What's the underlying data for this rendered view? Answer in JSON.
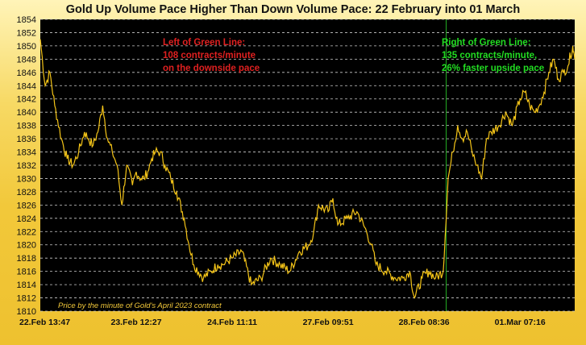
{
  "chart_data": {
    "type": "line",
    "title": "Gold Up Volume Pace Higher Than Down Volume Pace:  22 February into 01 March",
    "ylim": [
      1810,
      1854
    ],
    "y_ticks": [
      1810,
      1812,
      1814,
      1816,
      1818,
      1820,
      1822,
      1824,
      1826,
      1828,
      1830,
      1832,
      1834,
      1836,
      1838,
      1840,
      1842,
      1844,
      1846,
      1848,
      1850,
      1852,
      1854
    ],
    "x_tick_labels": [
      "22.Feb 13:47",
      "23.Feb 12:27",
      "24.Feb 11:11",
      "27.Feb 09:51",
      "28.Feb 08:36",
      "01.Mar 07:16"
    ],
    "x_tick_index": [
      0,
      1,
      2,
      3,
      4,
      5
    ],
    "x_index_range": [
      0,
      5.57
    ],
    "grid": true,
    "green_line_index": 4.23,
    "series": [
      {
        "color": "#f5c518",
        "x": [
          0.0,
          0.05,
          0.1,
          0.15,
          0.22,
          0.28,
          0.34,
          0.4,
          0.46,
          0.5,
          0.55,
          0.6,
          0.65,
          0.7,
          0.75,
          0.8,
          0.85,
          0.9,
          0.96,
          1.0,
          1.05,
          1.08,
          1.12,
          1.16,
          1.2,
          1.25,
          1.3,
          1.36,
          1.42,
          1.5,
          1.55,
          1.6,
          1.7,
          1.78,
          1.85,
          1.9,
          2.0,
          2.1,
          2.2,
          2.3,
          2.4,
          2.5,
          2.6,
          2.7,
          2.8,
          2.85,
          2.9,
          3.0,
          3.05,
          3.1,
          3.2,
          3.3,
          3.4,
          3.45,
          3.5,
          3.6,
          3.7,
          3.78,
          3.85,
          3.9,
          3.98,
          4.05,
          4.12,
          4.2,
          4.25,
          4.3,
          4.35,
          4.4,
          4.45,
          4.5,
          4.55,
          4.6,
          4.65,
          4.7,
          4.78,
          4.85,
          4.92,
          5.0,
          5.05,
          5.1,
          5.15,
          5.2,
          5.25,
          5.3,
          5.35,
          5.4,
          5.45,
          5.5,
          5.55,
          5.57
        ],
        "values": [
          1851,
          1844,
          1846,
          1841,
          1836,
          1833,
          1832,
          1834,
          1837,
          1836,
          1835,
          1837,
          1841,
          1836,
          1834,
          1832,
          1826,
          1832,
          1829,
          1831,
          1830,
          1830,
          1831,
          1833,
          1834,
          1834,
          1832,
          1830,
          1828,
          1824,
          1820,
          1817,
          1815,
          1816,
          1817,
          1817,
          1818,
          1819,
          1814,
          1815,
          1818,
          1817,
          1816,
          1819,
          1820,
          1822,
          1826,
          1825,
          1827,
          1823,
          1824,
          1825,
          1822,
          1820,
          1817,
          1816,
          1815,
          1815,
          1816,
          1812,
          1815,
          1816,
          1815,
          1816,
          1830,
          1834,
          1838,
          1836,
          1837,
          1834,
          1832,
          1830,
          1836,
          1837,
          1838,
          1840,
          1838,
          1842,
          1843,
          1841,
          1840,
          1841,
          1843,
          1846,
          1848,
          1845,
          1846,
          1847,
          1850,
          1848
        ]
      }
    ]
  },
  "annotations": {
    "left": [
      "Left of Green Line:",
      "108 contracts/minute",
      "on the downside pace"
    ],
    "right": [
      "Right of Green Line:",
      "135 contracts/minute,",
      "26% faster upside pace"
    ],
    "left_color": "#e02020",
    "right_color": "#22dd22",
    "source_note": "Price by the minute of Gold's April 2023 contract"
  },
  "colors": {
    "plot_bg": "#000000",
    "grid": "#cccccc",
    "price_line": "#f5c518",
    "green_line": "#22aa22"
  }
}
